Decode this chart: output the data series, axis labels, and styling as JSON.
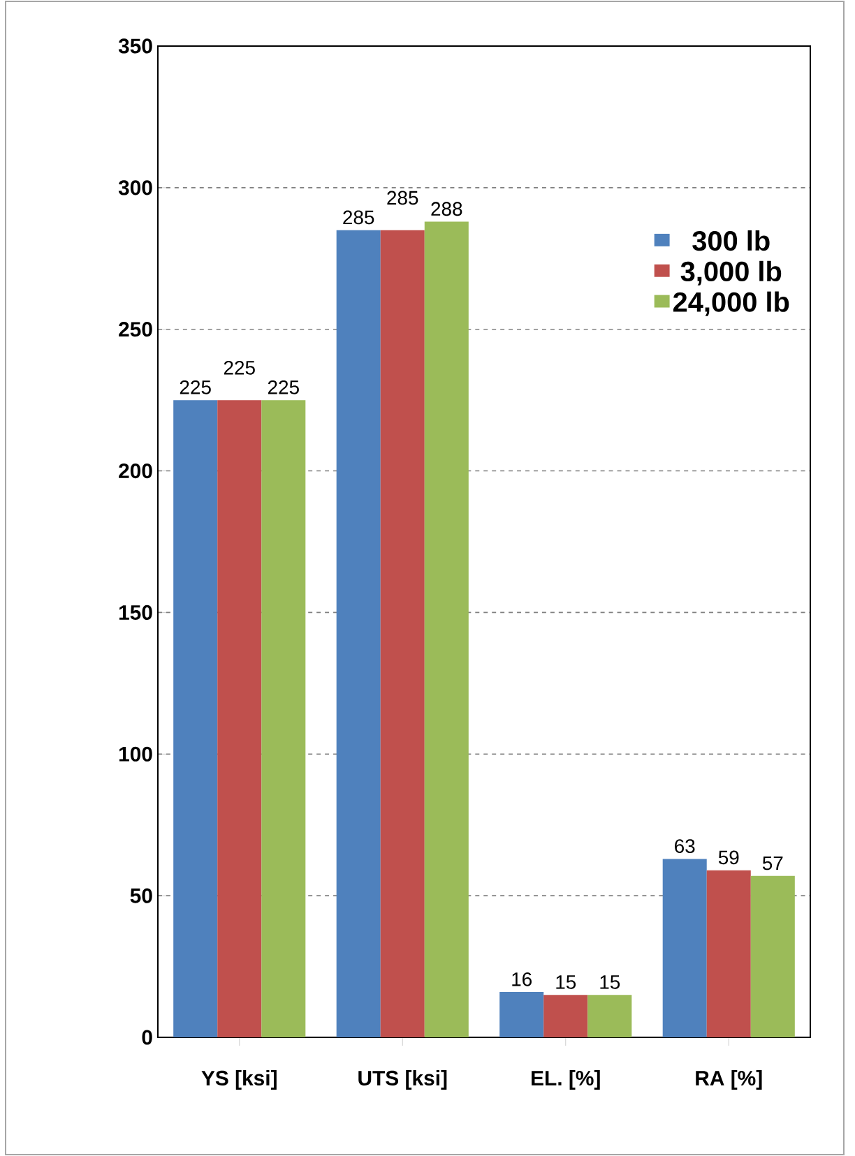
{
  "chart_data": {
    "type": "bar",
    "categories": [
      "YS [ksi]",
      "UTS [ksi]",
      "EL. [%]",
      "RA [%]"
    ],
    "series": [
      {
        "name": "300 lb",
        "color": "#4f81bd",
        "values": [
          225,
          285,
          16,
          63
        ]
      },
      {
        "name": "3,000 lb",
        "color": "#c0504d",
        "values": [
          225,
          285,
          15,
          59
        ]
      },
      {
        "name": "24,000 lb",
        "color": "#9bbb59",
        "values": [
          225,
          288,
          15,
          57
        ]
      }
    ],
    "ylim": [
      0,
      350
    ],
    "yticks": [
      0,
      50,
      100,
      150,
      200,
      250,
      300,
      350
    ],
    "grid": "y",
    "legend": "top right",
    "data_labels": true
  }
}
